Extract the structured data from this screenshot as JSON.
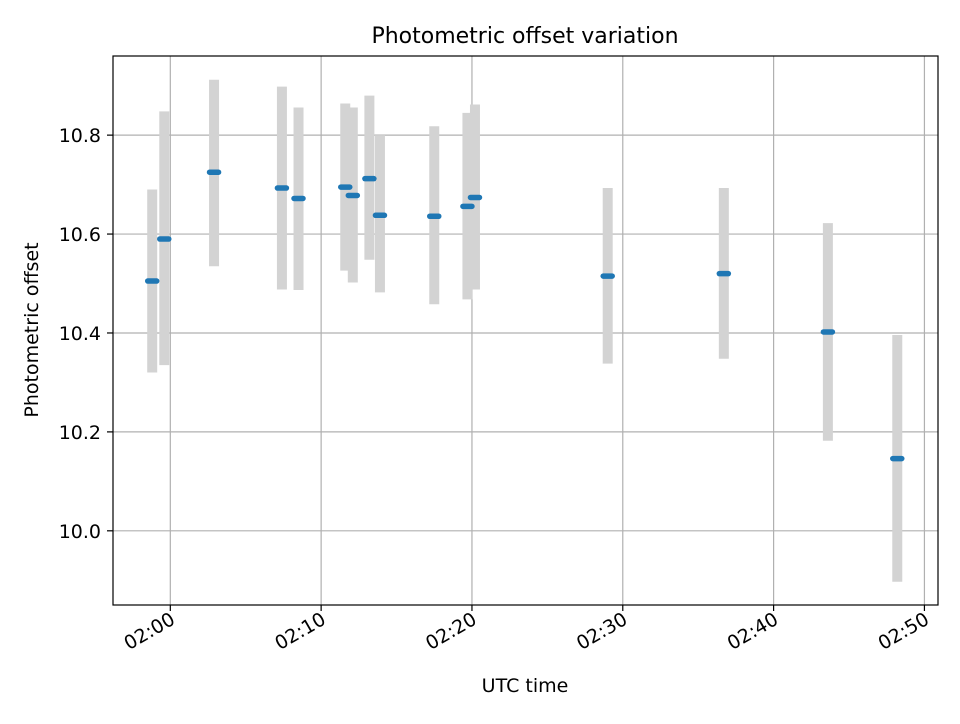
{
  "chart_data": {
    "type": "scatter",
    "title": "Photometric offset variation",
    "xlabel": "UTC time",
    "ylabel": "Photometric offset",
    "xlim": [
      -3.8,
      50.9
    ],
    "ylim": [
      9.85,
      10.96
    ],
    "grid": true,
    "x_unit": "minutes after 02:00 UTC",
    "x_tick_values": [
      0,
      10,
      20,
      30,
      40,
      50
    ],
    "x_tick_labels": [
      "02:00",
      "02:10",
      "02:20",
      "02:30",
      "02:40",
      "02:50"
    ],
    "y_tick_values": [
      10.0,
      10.2,
      10.4,
      10.6,
      10.8
    ],
    "y_tick_labels": [
      "10.0",
      "10.2",
      "10.4",
      "10.6",
      "10.8"
    ],
    "colors": {
      "point": "#1f77b4",
      "errorbar": "#d3d3d3",
      "grid": "#b0b0b0"
    },
    "series": [
      {
        "name": "offset",
        "x": [
          -1.2,
          -0.4,
          2.9,
          7.4,
          8.5,
          11.6,
          12.1,
          13.2,
          13.9,
          17.5,
          19.7,
          20.2,
          29.0,
          36.7,
          43.6,
          48.2
        ],
        "y": [
          10.505,
          10.59,
          10.725,
          10.693,
          10.672,
          10.695,
          10.678,
          10.712,
          10.638,
          10.636,
          10.656,
          10.674,
          10.515,
          10.52,
          10.402,
          10.146
        ],
        "yerr_low": [
          10.32,
          10.335,
          10.535,
          10.488,
          10.487,
          10.526,
          10.502,
          10.548,
          10.482,
          10.458,
          10.468,
          10.488,
          10.338,
          10.348,
          10.182,
          9.897
        ],
        "yerr_high": [
          10.69,
          10.848,
          10.912,
          10.898,
          10.856,
          10.864,
          10.856,
          10.88,
          10.8,
          10.818,
          10.845,
          10.862,
          10.693,
          10.693,
          10.622,
          10.396
        ]
      }
    ]
  }
}
